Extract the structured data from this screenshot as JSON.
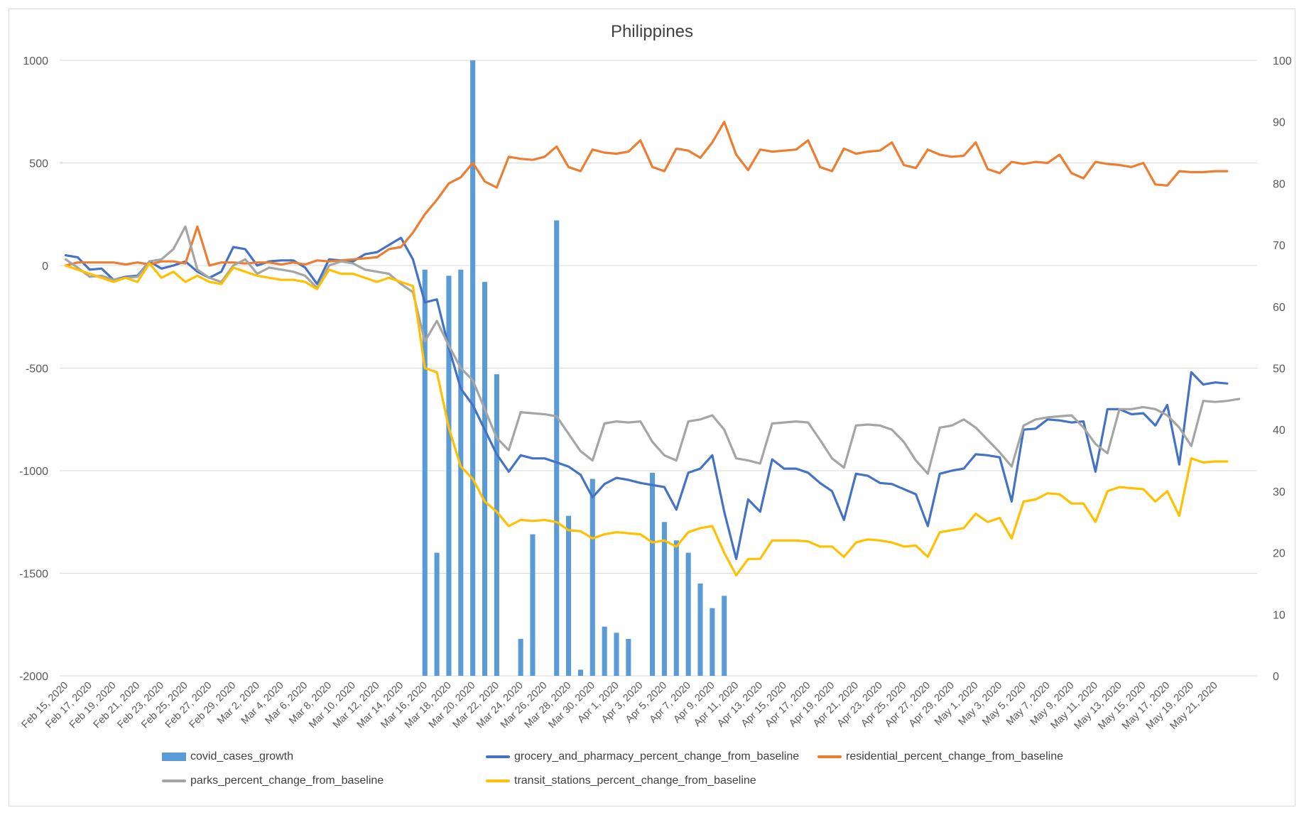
{
  "chart_data": {
    "type": "bar+line",
    "title": "Philippines",
    "xlabel": "",
    "ylabel": "",
    "y_left": {
      "min": -2000,
      "max": 1000,
      "ticks": [
        1000,
        500,
        0,
        -500,
        -1000,
        -1500,
        -2000
      ],
      "tick_labels": [
        "1000",
        "500",
        "0",
        "-500",
        "-1000",
        "-1500",
        "-2000"
      ]
    },
    "y_right": {
      "min": 0,
      "max": 100,
      "ticks": [
        100,
        90,
        80,
        70,
        60,
        50,
        40,
        30,
        20,
        10,
        0
      ],
      "tick_labels": [
        "100",
        "90",
        "80",
        "70",
        "60",
        "50",
        "40",
        "30",
        "20",
        "10",
        "0"
      ]
    },
    "grid": true,
    "legend_position": "bottom",
    "x_tick_labels": [
      "Feb 15, 2020",
      "Feb 17, 2020",
      "Feb 19, 2020",
      "Feb 21, 2020",
      "Feb 23, 2020",
      "Feb 25, 2020",
      "Feb 27, 2020",
      "Feb 29, 2020",
      "Mar 2, 2020",
      "Mar 4, 2020",
      "Mar 6, 2020",
      "Mar 8, 2020",
      "Mar 10, 2020",
      "Mar 12, 2020",
      "Mar 14, 2020",
      "Mar 16, 2020",
      "Mar 18, 2020",
      "Mar 20, 2020",
      "Mar 22, 2020",
      "Mar 24, 2020",
      "Mar 26, 2020",
      "Mar 28, 2020",
      "Mar 30, 2020",
      "Apr 1, 2020",
      "Apr 3, 2020",
      "Apr 5, 2020",
      "Apr 7, 2020",
      "Apr 9, 2020",
      "Apr 11, 2020",
      "Apr 13, 2020",
      "Apr 15, 2020",
      "Apr 17, 2020",
      "Apr 19, 2020",
      "Apr 21, 2020",
      "Apr 23, 2020",
      "Apr 25, 2020",
      "Apr 27, 2020",
      "Apr 29, 2020",
      "May 1, 2020",
      "May 3, 2020",
      "May 5, 2020",
      "May 7, 2020",
      "May 9, 2020",
      "May 11, 2020",
      "May 13, 2020",
      "May 15, 2020",
      "May 17, 2020",
      "May 19, 2020",
      "May 21, 2020"
    ],
    "series": [
      {
        "name": "covid_cases_growth",
        "type": "bar",
        "axis": "right",
        "color": "#5b9bd5",
        "values": [
          0,
          0,
          0,
          0,
          0,
          0,
          0,
          0,
          0,
          0,
          0,
          0,
          0,
          0,
          0,
          0,
          0,
          0,
          0,
          0,
          0,
          0,
          0,
          0,
          0,
          0,
          0,
          0,
          0,
          0,
          66,
          20,
          65,
          66,
          100,
          64,
          49,
          0,
          6,
          23,
          0,
          74,
          26,
          1,
          32,
          8,
          7,
          6,
          0,
          33,
          25,
          22,
          20,
          15,
          11,
          13,
          0,
          0,
          0,
          0,
          0,
          0,
          0,
          0,
          0,
          0,
          0,
          0,
          0,
          0,
          0,
          0,
          0,
          0,
          0,
          0,
          0,
          0,
          0,
          0,
          0,
          0,
          0,
          0,
          0,
          0,
          0,
          0,
          0,
          0,
          0,
          0,
          0,
          0,
          0,
          0,
          0,
          0,
          0,
          0
        ]
      },
      {
        "name": "grocery_and_pharmacy_percent_change_from_baseline",
        "type": "line",
        "axis": "left",
        "color": "#4472c4",
        "values": [
          50,
          40,
          -20,
          -15,
          -70,
          -55,
          -50,
          20,
          -15,
          0,
          20,
          -30,
          -60,
          -30,
          90,
          80,
          0,
          20,
          25,
          25,
          -10,
          -90,
          30,
          25,
          20,
          55,
          65,
          100,
          135,
          30,
          -180,
          -165,
          -400,
          -600,
          -680,
          -800,
          -920,
          -1005,
          -925,
          -940,
          -940,
          -960,
          -980,
          -1020,
          -1130,
          -1065,
          -1035,
          -1045,
          -1060,
          -1070,
          -1080,
          -1190,
          -1010,
          -990,
          -925,
          -1200,
          -1430,
          -1140,
          -1200,
          -945,
          -990,
          -990,
          -1010,
          -1060,
          -1100,
          -1240,
          -1015,
          -1025,
          -1060,
          -1065,
          -1090,
          -1115,
          -1270,
          -1015,
          -1000,
          -990,
          -920,
          -925,
          -935,
          -1150,
          -800,
          -795,
          -750,
          -755,
          -765,
          -760,
          -1005,
          -700,
          -700,
          -725,
          -720,
          -780,
          -680,
          -970,
          -520,
          -580,
          -570,
          -575
        ]
      },
      {
        "name": "residential_percent_change_from_baseline",
        "type": "line",
        "axis": "left",
        "color": "#ed7d31",
        "values": [
          0,
          15,
          15,
          15,
          15,
          5,
          15,
          5,
          20,
          20,
          10,
          190,
          0,
          15,
          15,
          10,
          15,
          15,
          5,
          15,
          5,
          25,
          20,
          25,
          30,
          35,
          40,
          80,
          90,
          160,
          250,
          320,
          400,
          430,
          500,
          410,
          380,
          530,
          520,
          515,
          530,
          580,
          480,
          460,
          565,
          550,
          545,
          555,
          610,
          480,
          460,
          570,
          560,
          525,
          600,
          700,
          540,
          465,
          565,
          555,
          560,
          565,
          610,
          480,
          460,
          570,
          545,
          555,
          560,
          600,
          490,
          475,
          565,
          540,
          530,
          535,
          600,
          470,
          450,
          505,
          495,
          505,
          500,
          540,
          450,
          425,
          505,
          495,
          490,
          480,
          500,
          395,
          390,
          460,
          455,
          455,
          460,
          460
        ]
      },
      {
        "name": "parks_percent_change_from_baseline",
        "type": "line",
        "axis": "left",
        "color": "#a5a5a5",
        "values": [
          30,
          -10,
          -55,
          -50,
          -70,
          -60,
          -55,
          20,
          30,
          80,
          190,
          -20,
          -60,
          -80,
          0,
          30,
          -40,
          -10,
          -20,
          -30,
          -50,
          -110,
          0,
          20,
          10,
          -20,
          -30,
          -40,
          -90,
          -130,
          -370,
          -270,
          -390,
          -500,
          -560,
          -700,
          -840,
          -900,
          -715,
          -720,
          -725,
          -735,
          -820,
          -905,
          -950,
          -770,
          -760,
          -765,
          -760,
          -860,
          -925,
          -950,
          -760,
          -750,
          -730,
          -800,
          -940,
          -950,
          -965,
          -770,
          -765,
          -760,
          -765,
          -850,
          -940,
          -985,
          -780,
          -775,
          -780,
          -800,
          -860,
          -950,
          -1015,
          -790,
          -780,
          -750,
          -790,
          -850,
          -910,
          -980,
          -780,
          -750,
          -740,
          -735,
          -730,
          -790,
          -870,
          -915,
          -700,
          -700,
          -690,
          -700,
          -730,
          -790,
          -880,
          -660,
          -665,
          -660,
          -650
        ]
      },
      {
        "name": "transit_stations_percent_change_from_baseline",
        "type": "line",
        "axis": "left",
        "color": "#ffc000",
        "values": [
          0,
          -20,
          -40,
          -60,
          -80,
          -60,
          -80,
          10,
          -60,
          -30,
          -80,
          -50,
          -80,
          -90,
          -10,
          -30,
          -50,
          -60,
          -70,
          -70,
          -80,
          -115,
          -20,
          -40,
          -40,
          -60,
          -80,
          -60,
          -80,
          -100,
          -500,
          -520,
          -790,
          -980,
          -1040,
          -1150,
          -1200,
          -1270,
          -1240,
          -1245,
          -1240,
          -1250,
          -1290,
          -1295,
          -1330,
          -1310,
          -1300,
          -1305,
          -1310,
          -1350,
          -1340,
          -1370,
          -1300,
          -1280,
          -1270,
          -1400,
          -1510,
          -1430,
          -1430,
          -1340,
          -1340,
          -1340,
          -1345,
          -1370,
          -1370,
          -1420,
          -1350,
          -1335,
          -1340,
          -1350,
          -1370,
          -1365,
          -1420,
          -1300,
          -1290,
          -1280,
          -1210,
          -1250,
          -1230,
          -1330,
          -1150,
          -1140,
          -1110,
          -1115,
          -1160,
          -1160,
          -1250,
          -1100,
          -1080,
          -1085,
          -1090,
          -1150,
          -1100,
          -1220,
          -940,
          -960,
          -955,
          -955
        ]
      }
    ]
  }
}
